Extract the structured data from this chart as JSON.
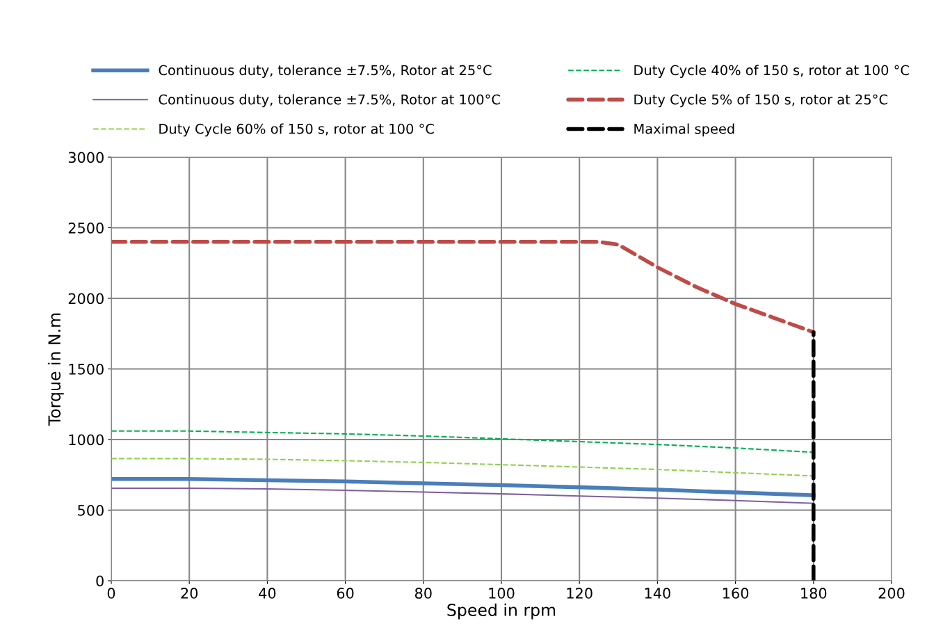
{
  "chart_data": {
    "type": "line",
    "xlabel": "Speed in rpm",
    "ylabel": "Torque in N.m",
    "xlim": [
      0,
      200
    ],
    "xticks": [
      0,
      20,
      40,
      60,
      80,
      100,
      120,
      140,
      160,
      180,
      200
    ],
    "ylim": [
      0,
      3000
    ],
    "yticks": [
      0,
      500,
      1000,
      1500,
      2000,
      2500,
      3000
    ],
    "grid": true,
    "legend": "top",
    "marker": "none",
    "x": [
      0,
      20,
      40,
      60,
      80,
      100,
      120,
      140,
      160,
      180
    ],
    "series": [
      {
        "name": "Continuous duty, tolerance ±7.5%, Rotor at 25°C",
        "color": "#4a7ebb",
        "line_style": "solid",
        "values": [
          720,
          720,
          712,
          703,
          690,
          677,
          662,
          645,
          625,
          605
        ]
      },
      {
        "name": "Continuous duty, tolerance ±7.5%, Rotor at 100°C",
        "color": "#7d5fa0",
        "line_style": "solid",
        "values": [
          655,
          655,
          650,
          640,
          628,
          615,
          600,
          585,
          568,
          548
        ]
      },
      {
        "name": "Duty Cycle 60% of 150 s, rotor at 100 °C",
        "color": "#92d050",
        "line_style": "dashed",
        "values": [
          865,
          865,
          860,
          850,
          838,
          822,
          805,
          788,
          765,
          742
        ]
      },
      {
        "name": "Duty Cycle 40% of 150 s, rotor at 100 °C",
        "color": "#00b050",
        "line_style": "dashed",
        "values": [
          1060,
          1060,
          1050,
          1040,
          1025,
          1005,
          985,
          965,
          940,
          910
        ]
      },
      {
        "name": "Duty Cycle 5% of 150 s, rotor at 25°C",
        "color": "#be4b48",
        "line_style": "dashed",
        "x": [
          0,
          125,
          130,
          140,
          150,
          160,
          170,
          180
        ],
        "values": [
          2400,
          2400,
          2380,
          2220,
          2080,
          1960,
          1860,
          1760
        ]
      },
      {
        "name": "Maximal speed",
        "color": "#000000",
        "line_style": "dashed",
        "x": [
          180,
          180
        ],
        "values": [
          0,
          1760
        ]
      }
    ]
  }
}
